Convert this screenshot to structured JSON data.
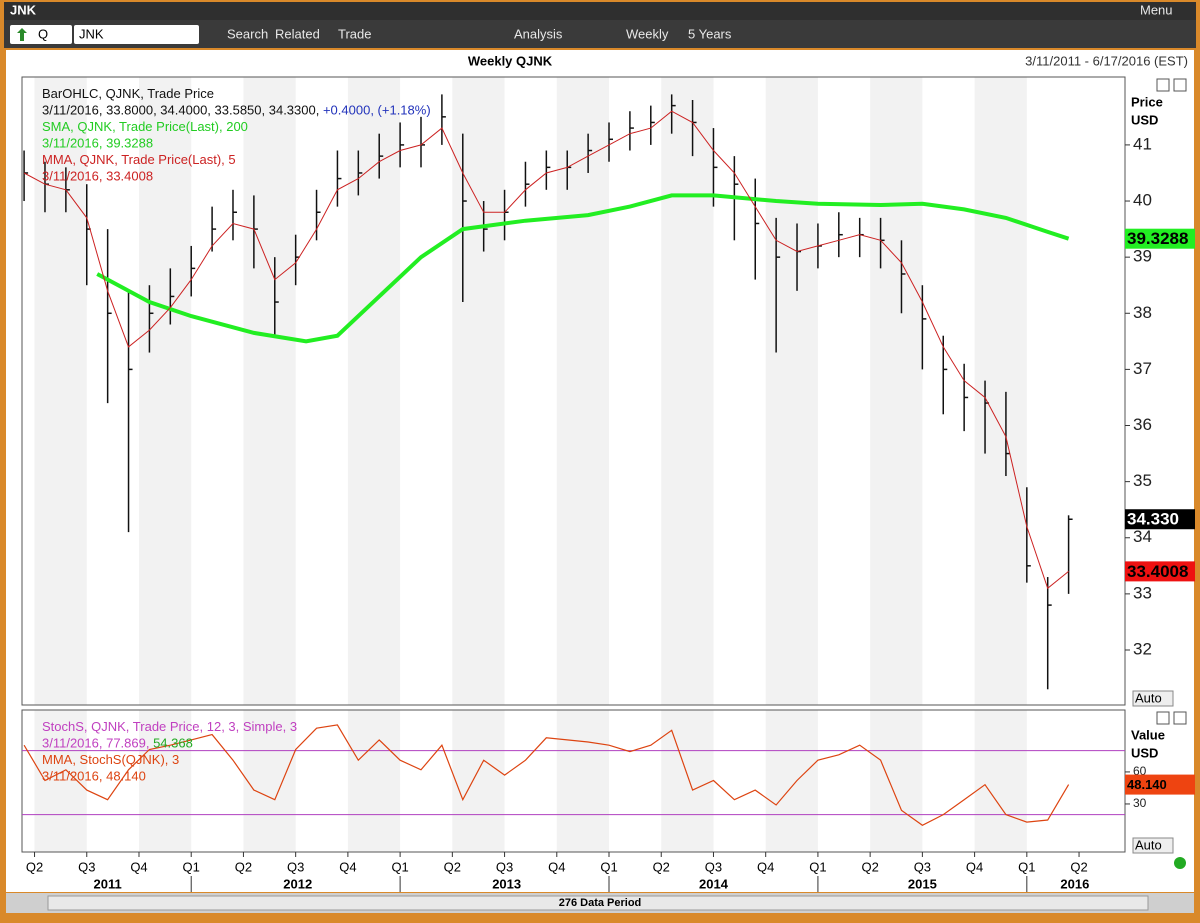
{
  "window_title": "JNK",
  "menu": "Menu",
  "toolbar": {
    "symbol_prefix": "Q",
    "symbol": "JNK",
    "items": [
      "Search",
      "Related",
      "Trade",
      "Analysis",
      "Weekly",
      "5 Years"
    ]
  },
  "footer": "276 Data Period",
  "chart_data": [
    {
      "type": "ohlc",
      "title": "Weekly QJNK",
      "subtitle": "3/11/2011 - 6/17/2016 (EST)",
      "ylabel": "Price",
      "yunit": "USD",
      "auto": "Auto",
      "legend": [
        [
          {
            "text": "BarOHLC, QJNK, Trade Price",
            "color": "#111111"
          }
        ],
        [
          {
            "text": "3/11/2016, 33.8000, 34.4000, 33.5850, 34.3300, ",
            "color": "#111111"
          },
          {
            "text": "+0.4000, (+1.18%)",
            "color": "#2233bb"
          }
        ],
        [
          {
            "text": "SMA, QJNK, Trade Price(Last),  200",
            "color": "#22cc22"
          }
        ],
        [
          {
            "text": "3/11/2016, 39.3288",
            "color": "#22cc22"
          }
        ],
        [
          {
            "text": "MMA, QJNK, Trade Price(Last),  5",
            "color": "#cc2222"
          }
        ],
        [
          {
            "text": "3/11/2016, 33.4008",
            "color": "#cc2222"
          }
        ]
      ],
      "xlim": [
        2011.19,
        2016.47
      ],
      "ylim": [
        31.02,
        42.21
      ],
      "yticks": [
        32,
        33,
        34,
        35,
        36,
        37,
        38,
        39,
        40,
        41
      ],
      "bar_color": "#111111",
      "x": [
        2011.2,
        2011.3,
        2011.4,
        2011.5,
        2011.6,
        2011.7,
        2011.8,
        2011.9,
        2012.0,
        2012.1,
        2012.2,
        2012.3,
        2012.4,
        2012.5,
        2012.6,
        2012.7,
        2012.8,
        2012.9,
        2013.0,
        2013.1,
        2013.2,
        2013.3,
        2013.4,
        2013.5,
        2013.6,
        2013.7,
        2013.8,
        2013.9,
        2014.0,
        2014.1,
        2014.2,
        2014.3,
        2014.4,
        2014.5,
        2014.6,
        2014.7,
        2014.8,
        2014.9,
        2015.0,
        2015.1,
        2015.2,
        2015.3,
        2015.4,
        2015.5,
        2015.6,
        2015.7,
        2015.8,
        2015.9,
        2016.0,
        2016.1,
        2016.2
      ],
      "high": [
        40.9,
        40.7,
        40.6,
        40.3,
        39.5,
        38.4,
        38.5,
        38.8,
        39.2,
        39.9,
        40.2,
        40.1,
        39.0,
        39.4,
        40.2,
        40.9,
        40.9,
        41.2,
        41.4,
        41.5,
        41.9,
        41.2,
        40.0,
        40.2,
        40.7,
        40.9,
        40.9,
        41.2,
        41.4,
        41.6,
        41.7,
        41.9,
        41.8,
        41.3,
        40.8,
        40.4,
        39.7,
        39.6,
        39.6,
        39.8,
        39.7,
        39.7,
        39.3,
        38.5,
        37.6,
        37.1,
        36.8,
        36.6,
        34.9,
        33.3,
        34.4
      ],
      "low": [
        40.0,
        39.8,
        39.8,
        38.5,
        36.4,
        34.1,
        37.3,
        37.8,
        38.3,
        39.1,
        39.3,
        38.8,
        37.6,
        38.5,
        39.3,
        39.9,
        40.1,
        40.4,
        40.6,
        40.6,
        41.0,
        38.2,
        39.1,
        39.3,
        39.9,
        40.2,
        40.2,
        40.5,
        40.7,
        40.9,
        41.0,
        41.2,
        40.8,
        39.9,
        39.3,
        38.6,
        37.3,
        38.4,
        38.8,
        39.0,
        39.0,
        38.8,
        38.0,
        37.0,
        36.2,
        35.9,
        35.5,
        35.1,
        33.2,
        31.3,
        33.0
      ],
      "close": [
        40.5,
        40.3,
        40.2,
        39.5,
        38.0,
        37.0,
        38.0,
        38.3,
        38.8,
        39.5,
        39.8,
        39.5,
        38.2,
        39.0,
        39.8,
        40.4,
        40.5,
        40.8,
        41.0,
        41.0,
        41.5,
        40.0,
        39.5,
        39.8,
        40.3,
        40.6,
        40.6,
        40.9,
        41.1,
        41.3,
        41.4,
        41.7,
        41.4,
        40.6,
        40.3,
        39.6,
        39.0,
        39.1,
        39.2,
        39.4,
        39.4,
        39.3,
        38.7,
        37.9,
        37.0,
        36.5,
        36.4,
        35.5,
        33.5,
        32.8,
        34.33
      ],
      "series": [
        {
          "name": "SMA",
          "color": "#22ee22",
          "width": 4,
          "x": [
            2011.55,
            2011.8,
            2012.0,
            2012.3,
            2012.55,
            2012.7,
            2012.9,
            2013.1,
            2013.3,
            2013.6,
            2013.9,
            2014.1,
            2014.3,
            2014.5,
            2014.8,
            2015.0,
            2015.3,
            2015.5,
            2015.7,
            2015.9,
            2016.1,
            2016.2
          ],
          "values": [
            38.7,
            38.2,
            37.95,
            37.65,
            37.5,
            37.6,
            38.3,
            39.0,
            39.5,
            39.65,
            39.75,
            39.9,
            40.1,
            40.1,
            40.0,
            39.95,
            39.93,
            39.95,
            39.85,
            39.7,
            39.45,
            39.3288
          ]
        },
        {
          "name": "MMA",
          "color": "#cc2222",
          "width": 1,
          "x": [
            2011.2,
            2011.3,
            2011.4,
            2011.5,
            2011.6,
            2011.7,
            2011.8,
            2011.9,
            2012.0,
            2012.1,
            2012.2,
            2012.3,
            2012.4,
            2012.5,
            2012.6,
            2012.7,
            2012.8,
            2012.9,
            2013.0,
            2013.1,
            2013.2,
            2013.3,
            2013.4,
            2013.5,
            2013.6,
            2013.7,
            2013.8,
            2013.9,
            2014.0,
            2014.1,
            2014.2,
            2014.3,
            2014.4,
            2014.5,
            2014.6,
            2014.7,
            2014.8,
            2014.9,
            2015.0,
            2015.1,
            2015.2,
            2015.3,
            2015.4,
            2015.5,
            2015.6,
            2015.7,
            2015.8,
            2015.9,
            2016.0,
            2016.1,
            2016.2
          ],
          "values": [
            40.5,
            40.3,
            40.2,
            39.7,
            38.4,
            37.4,
            37.7,
            38.1,
            38.6,
            39.2,
            39.6,
            39.5,
            38.6,
            38.9,
            39.5,
            40.2,
            40.4,
            40.7,
            40.9,
            41.0,
            41.3,
            40.5,
            39.8,
            39.8,
            40.2,
            40.5,
            40.6,
            40.8,
            41.0,
            41.2,
            41.3,
            41.6,
            41.4,
            40.9,
            40.5,
            39.9,
            39.3,
            39.1,
            39.2,
            39.3,
            39.4,
            39.3,
            38.9,
            38.2,
            37.4,
            36.8,
            36.5,
            35.8,
            34.2,
            33.1,
            33.4008
          ]
        }
      ],
      "badges": [
        {
          "value": 39.3288,
          "label": "39.3288",
          "bg": "#22ee22",
          "fg": "#000000"
        },
        {
          "value": 34.33,
          "label": "34.330",
          "bg": "#000000",
          "fg": "#ffffff"
        },
        {
          "value": 33.4008,
          "label": "33.4008",
          "bg": "#ee1111",
          "fg": "#000000"
        }
      ]
    },
    {
      "type": "line",
      "ylabel": "Value",
      "yunit": "USD",
      "auto": "Auto",
      "legend": [
        [
          {
            "text": "StochS, QJNK, Trade Price,  12, 3, Simple, 3",
            "color": "#c040c0"
          }
        ],
        [
          {
            "text": "3/11/2016, 77.869, ",
            "color": "#c040c0"
          },
          {
            "text": "54.368",
            "color": "#22aa22"
          }
        ],
        [
          {
            "text": "MMA, StochS(QJNK),  3",
            "color": "#dd4411"
          }
        ],
        [
          {
            "text": "3/11/2016, 48.140",
            "color": "#dd4411"
          }
        ]
      ],
      "xlim": [
        2011.19,
        2016.47
      ],
      "ylim": [
        -15,
        118
      ],
      "yticks": [
        30,
        60
      ],
      "reference_lines": [
        80,
        20
      ],
      "reference_color": "#b040c0",
      "quarter_shading": true,
      "xticks": [
        {
          "value": 2011.25,
          "label": "Q2"
        },
        {
          "value": 2011.5,
          "label": "Q3"
        },
        {
          "value": 2011.75,
          "label": "Q4"
        },
        {
          "value": 2012.0,
          "label": "Q1"
        },
        {
          "value": 2012.25,
          "label": "Q2"
        },
        {
          "value": 2012.5,
          "label": "Q3"
        },
        {
          "value": 2012.75,
          "label": "Q4"
        },
        {
          "value": 2013.0,
          "label": "Q1"
        },
        {
          "value": 2013.25,
          "label": "Q2"
        },
        {
          "value": 2013.5,
          "label": "Q3"
        },
        {
          "value": 2013.75,
          "label": "Q4"
        },
        {
          "value": 2014.0,
          "label": "Q1"
        },
        {
          "value": 2014.25,
          "label": "Q2"
        },
        {
          "value": 2014.5,
          "label": "Q3"
        },
        {
          "value": 2014.75,
          "label": "Q4"
        },
        {
          "value": 2015.0,
          "label": "Q1"
        },
        {
          "value": 2015.25,
          "label": "Q2"
        },
        {
          "value": 2015.5,
          "label": "Q3"
        },
        {
          "value": 2015.75,
          "label": "Q4"
        },
        {
          "value": 2016.0,
          "label": "Q1"
        },
        {
          "value": 2016.25,
          "label": "Q2"
        }
      ],
      "year_labels": [
        {
          "value": 2011.6,
          "label": "2011"
        },
        {
          "value": 2012.51,
          "label": "2012"
        },
        {
          "value": 2013.51,
          "label": "2013"
        },
        {
          "value": 2014.5,
          "label": "2014"
        },
        {
          "value": 2015.5,
          "label": "2015"
        },
        {
          "value": 2016.23,
          "label": "2016"
        }
      ],
      "series": [
        {
          "name": "MMA, StochS(QJNK)",
          "color": "#dd4411",
          "x": [
            2011.2,
            2011.3,
            2011.4,
            2011.5,
            2011.6,
            2011.7,
            2011.8,
            2011.9,
            2012.0,
            2012.1,
            2012.2,
            2012.3,
            2012.4,
            2012.5,
            2012.6,
            2012.7,
            2012.8,
            2012.9,
            2013.0,
            2013.1,
            2013.2,
            2013.3,
            2013.4,
            2013.5,
            2013.6,
            2013.7,
            2013.8,
            2013.9,
            2014.0,
            2014.1,
            2014.2,
            2014.3,
            2014.4,
            2014.5,
            2014.6,
            2014.7,
            2014.8,
            2014.9,
            2015.0,
            2015.1,
            2015.2,
            2015.3,
            2015.4,
            2015.5,
            2015.6,
            2015.7,
            2015.8,
            2015.9,
            2016.0,
            2016.1,
            2016.2
          ],
          "values": [
            85,
            52,
            62,
            43,
            34,
            62,
            81,
            85,
            90,
            95,
            71,
            43,
            34,
            81,
            101,
            104,
            71,
            90,
            71,
            62,
            85,
            34,
            71,
            57,
            71,
            92,
            90,
            88,
            85,
            79,
            85,
            99,
            43,
            52,
            34,
            43,
            29,
            52,
            71,
            76,
            85,
            71,
            24,
            10,
            20,
            34,
            48,
            20,
            13,
            15,
            48.14
          ]
        }
      ],
      "badges": [
        {
          "value": 48.14,
          "label": "48.140",
          "bg": "#ee4411",
          "fg": "#000000"
        }
      ]
    }
  ]
}
